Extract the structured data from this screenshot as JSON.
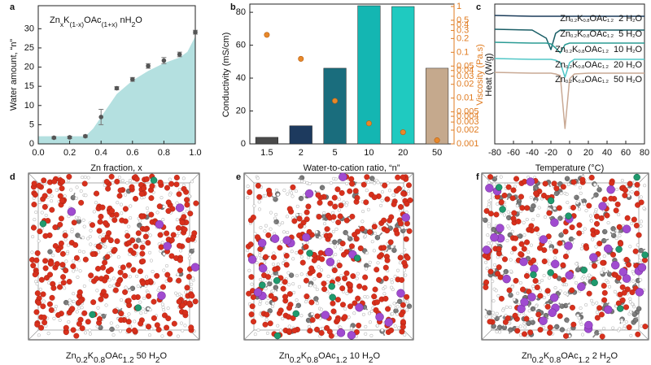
{
  "panel_labels": [
    "a",
    "b",
    "c",
    "d",
    "e",
    "f"
  ],
  "chart_data": [
    {
      "type": "scatter",
      "formula": [
        "Zn",
        "x",
        "K",
        "(1-x)",
        "OAc",
        "(1+x)",
        " nH",
        "2",
        "O"
      ],
      "x_label": "Zn fraction, x",
      "y_label": "Water amount, “n”",
      "x": [
        0.1,
        0.2,
        0.3,
        0.4,
        0.5,
        0.6,
        0.7,
        0.8,
        0.9,
        1.0
      ],
      "values": [
        1.6,
        1.7,
        2.0,
        7.0,
        14.5,
        16.8,
        20.3,
        21.7,
        23.3,
        29.1
      ],
      "errors": [
        0.3,
        0.3,
        0.3,
        2.0,
        0.4,
        0.5,
        0.6,
        0.8,
        0.6,
        0.5
      ],
      "color": "#555555",
      "area": {
        "x": [
          0,
          0.1,
          0.2,
          0.3,
          0.35,
          0.4,
          0.5,
          0.6,
          0.7,
          0.8,
          0.9,
          0.95,
          1.0
        ],
        "values": [
          2,
          2,
          2,
          2,
          4,
          7,
          13,
          16.5,
          19,
          21,
          22.5,
          24,
          28
        ],
        "color": "#b4e0e0"
      },
      "xlim": [
        0,
        1
      ],
      "ylim": [
        0,
        36
      ],
      "xticks": [
        {
          "value": 0,
          "label": "0.0"
        },
        0.2,
        0.4,
        0.6,
        0.8,
        {
          "value": 1,
          "label": "1.0"
        }
      ],
      "yticks": [
        0,
        5,
        10,
        15,
        20,
        25,
        30
      ]
    },
    {
      "type": "bar",
      "x_label": "Water-to-cation ratio, “n”",
      "y_label": "Conductivity (mS/cm)",
      "y2_label": "Viscosity (Pa.s)",
      "categories": [
        "1.5",
        "2",
        "5",
        "10",
        "20",
        "50"
      ],
      "series": [
        {
          "values": [
            4,
            11,
            46,
            84,
            83.5,
            46
          ],
          "colors": [
            "#4a4a4a",
            "#1d3a5e",
            "#1a6d7d",
            "#14b6b2",
            "#1fcac0",
            "#c5a98d"
          ]
        },
        {
          "values": [
            0.24,
            0.072,
            0.0087,
            0.0028,
            0.0018,
            0.0012
          ],
          "axis": "y2",
          "color": "#e8882a"
        }
      ],
      "ylim": [
        0,
        85
      ],
      "yticks": [
        0,
        20,
        40,
        60,
        80
      ],
      "y2lim": [
        0.001,
        1.13
      ],
      "y2log": true,
      "y2ticks": [
        1,
        0.5,
        0.4,
        0.3,
        0.2,
        0.1,
        0.05,
        0.04,
        0.03,
        0.02,
        0.01,
        0.005,
        0.004,
        0.003,
        0.002,
        0.001
      ],
      "y2color": "#e07b20"
    },
    {
      "type": "line",
      "x_label": "Temperature (°C)",
      "y_label": "Heat (W/g)",
      "x": [
        -80,
        -40,
        -25,
        -20,
        -15,
        -10,
        -5,
        0,
        5,
        20,
        40,
        80
      ],
      "series": [
        {
          "name": [
            "Zn",
            "0.2",
            "K",
            "0.8",
            "OAc",
            "1.2",
            "  2 H",
            "2",
            "O"
          ],
          "color": "#1b3c5a",
          "values": [
            158,
            157,
            157,
            157,
            157,
            157,
            157,
            157,
            157,
            157,
            157,
            157
          ]
        },
        {
          "name": [
            "Zn",
            "0.2",
            "K",
            "0.8",
            "OAc",
            "1.2",
            "  5 H",
            "2",
            "O"
          ],
          "color": "#1a5e66",
          "values": [
            141,
            140,
            130,
            116,
            136,
            140,
            140,
            140,
            140,
            140,
            140,
            140
          ]
        },
        {
          "name": [
            "Zn",
            "0.2",
            "K",
            "0.8",
            "OAc",
            "1.2",
            "  10 H",
            "2",
            "O"
          ],
          "color": "#2a9b94",
          "values": [
            125,
            124,
            124,
            123,
            118,
            112,
            122,
            124,
            124,
            124,
            124,
            124
          ]
        },
        {
          "name": [
            "Zn",
            "0.2",
            "K",
            "0.8",
            "OAc",
            "1.2",
            "  20 H",
            "2",
            "O"
          ],
          "color": "#52c7c7",
          "values": [
            105,
            104,
            104,
            104,
            103,
            100,
            82,
            100,
            104,
            104,
            104,
            104
          ]
        },
        {
          "name": [
            "Zn",
            "0.2",
            "K",
            "0.8",
            "OAc",
            "1.2",
            "  50 H",
            "2",
            "O"
          ],
          "color": "#c9a994",
          "values": [
            88,
            87,
            87,
            87,
            86,
            84,
            19,
            80,
            86,
            87,
            87,
            87
          ]
        }
      ],
      "xlim": [
        -80,
        80
      ],
      "ylim": [
        0,
        172
      ],
      "xticks": [
        -80,
        -60,
        -40,
        -20,
        0,
        20,
        40,
        60,
        80
      ]
    }
  ],
  "images": [
    {
      "caption": [
        "Zn",
        "0.2",
        "K",
        "0.8",
        "OAc",
        "1.2",
        " 50 H",
        "2",
        "O"
      ]
    },
    {
      "caption": [
        "Zn",
        "0.2",
        "K",
        "0.8",
        "OAc",
        "1.2",
        " 10 H",
        "2",
        "O"
      ]
    },
    {
      "caption": [
        "Zn",
        "0.2",
        "K",
        "0.8",
        "OAc",
        "1.2",
        " 2 H",
        "2",
        "O"
      ]
    }
  ]
}
